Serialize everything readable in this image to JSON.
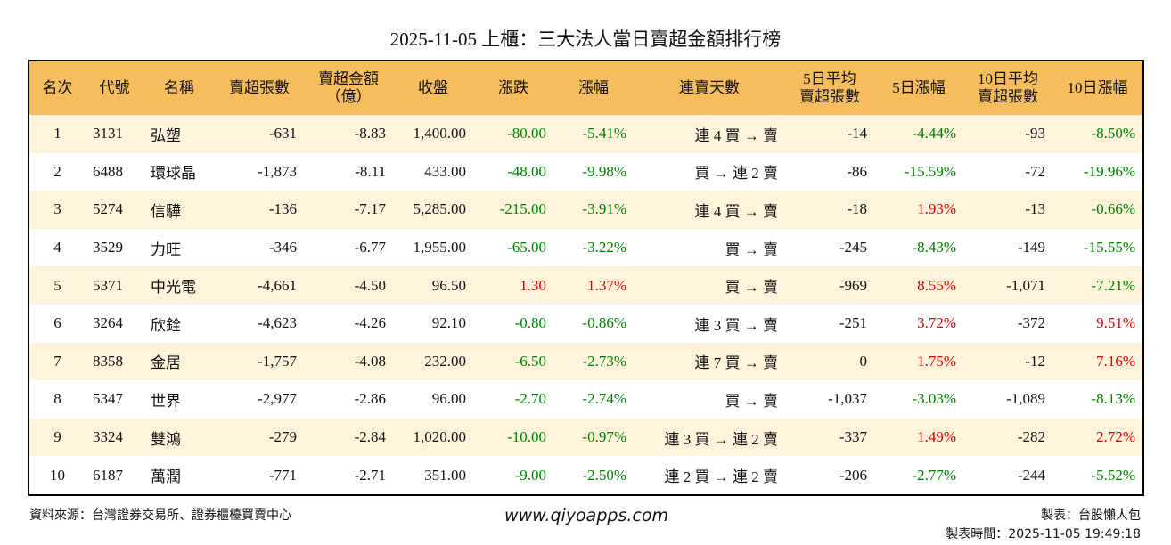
{
  "title": "2025-11-05 上櫃：三大法人當日賣超金額排行榜",
  "table": {
    "header": [
      "名次",
      "代號",
      "名稱",
      "賣超張數",
      "賣超金額\n（億）",
      "收盤",
      "漲跌",
      "漲幅",
      "連賣天數",
      "5日平均\n賣超張數",
      "5日漲幅",
      "10日平均\n賣超張數",
      "10日漲幅"
    ],
    "rows": [
      [
        "1",
        "3131",
        "弘塑",
        "-631",
        "-8.83",
        "1,400.00",
        "-80.00",
        "-5.41%",
        "連 4 買 → 賣",
        "-14",
        "-4.44%",
        "-93",
        "-8.50%"
      ],
      [
        "2",
        "6488",
        "環球晶",
        "-1,873",
        "-8.11",
        "433.00",
        "-48.00",
        "-9.98%",
        "買 → 連 2 賣",
        "-86",
        "-15.59%",
        "-72",
        "-19.96%"
      ],
      [
        "3",
        "5274",
        "信驊",
        "-136",
        "-7.17",
        "5,285.00",
        "-215.00",
        "-3.91%",
        "連 4 買 → 賣",
        "-18",
        "1.93%",
        "-13",
        "-0.66%"
      ],
      [
        "4",
        "3529",
        "力旺",
        "-346",
        "-6.77",
        "1,955.00",
        "-65.00",
        "-3.22%",
        "買 → 賣",
        "-245",
        "-8.43%",
        "-149",
        "-15.55%"
      ],
      [
        "5",
        "5371",
        "中光電",
        "-4,661",
        "-4.50",
        "96.50",
        "1.30",
        "1.37%",
        "買 → 賣",
        "-969",
        "8.55%",
        "-1,071",
        "-7.21%"
      ],
      [
        "6",
        "3264",
        "欣銓",
        "-4,623",
        "-4.26",
        "92.10",
        "-0.80",
        "-0.86%",
        "連 3 買 → 賣",
        "-251",
        "3.72%",
        "-372",
        "9.51%"
      ],
      [
        "7",
        "8358",
        "金居",
        "-1,757",
        "-4.08",
        "232.00",
        "-6.50",
        "-2.73%",
        "連 7 買 → 賣",
        "0",
        "1.75%",
        "-12",
        "7.16%"
      ],
      [
        "8",
        "5347",
        "世界",
        "-2,977",
        "-2.86",
        "96.00",
        "-2.70",
        "-2.74%",
        "買 → 賣",
        "-1,037",
        "-3.03%",
        "-1,089",
        "-8.13%"
      ],
      [
        "9",
        "3324",
        "雙鴻",
        "-279",
        "-2.84",
        "1,020.00",
        "-10.00",
        "-0.97%",
        "連 3 買 → 連 2 賣",
        "-337",
        "1.49%",
        "-282",
        "2.72%"
      ],
      [
        "10",
        "6187",
        "萬潤",
        "-771",
        "-2.71",
        "351.00",
        "-9.00",
        "-2.50%",
        "連 2 買 → 連 2 賣",
        "-206",
        "-2.77%",
        "-244",
        "-5.52%"
      ]
    ]
  },
  "footer": {
    "source": "資料來源：台灣證券交易所、證券櫃檯買賣中心",
    "site": "www.qiyoapps.com",
    "maker": "製表：台股懶人包",
    "time": "製表時間：2025-11-05 19:49:18"
  }
}
